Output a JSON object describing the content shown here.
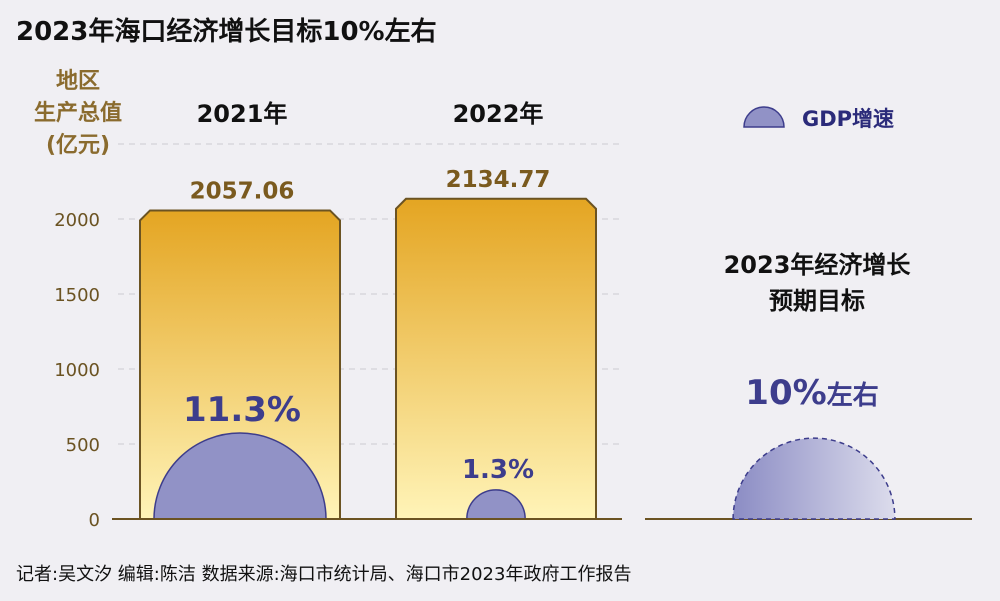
{
  "title": "2023年海口经济增长目标10%左右",
  "y_unit_lines": [
    "地区",
    "生产总值",
    "(亿元)"
  ],
  "legend": {
    "label": "GDP增速"
  },
  "target": {
    "title_lines": [
      "2023年经济增长",
      "预期目标"
    ],
    "value_num": "10%",
    "value_suffix": "左右",
    "growth_value": 10
  },
  "credits": "记者:吴文汐  编辑:陈洁   数据来源:海口市统计局、海口市2023年政府工作报告",
  "colors": {
    "bar_top": "#e4a522",
    "bar_bottom": "#fff4b8",
    "bar_border": "#6b5322",
    "growth_fill": "#9192c6",
    "growth_stroke": "#3d3d8c",
    "axis": "#6b5322",
    "grid": "#cdcbd2"
  },
  "chart_data": {
    "type": "bar",
    "categories": [
      "2021年",
      "2022年"
    ],
    "series": [
      {
        "values": [
          2057.06,
          2134.77
        ],
        "labels": [
          "2057.06",
          "2134.77"
        ]
      },
      {
        "name": "GDP增速",
        "values": [
          11.3,
          1.3
        ],
        "labels": [
          "11.3%",
          "1.3%"
        ]
      }
    ],
    "y_ticks": [
      0,
      500,
      1000,
      1500,
      2000
    ],
    "ylim": [
      0,
      2500
    ],
    "grid": true
  }
}
